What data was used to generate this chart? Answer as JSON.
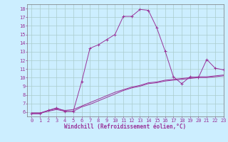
{
  "xlabel": "Windchill (Refroidissement éolien,°C)",
  "background_color": "#cceeff",
  "grid_color": "#aacccc",
  "line_color": "#993399",
  "x_hours": [
    0,
    1,
    2,
    3,
    4,
    5,
    6,
    7,
    8,
    9,
    10,
    11,
    12,
    13,
    14,
    15,
    16,
    17,
    18,
    19,
    20,
    21,
    22,
    23
  ],
  "series1": [
    5.8,
    5.8,
    6.2,
    6.5,
    6.1,
    6.1,
    9.5,
    13.4,
    13.8,
    14.4,
    15.0,
    17.1,
    17.1,
    17.9,
    17.8,
    15.8,
    13.1,
    10.1,
    9.3,
    10.1,
    10.0,
    12.1,
    11.1,
    10.9
  ],
  "series2": [
    5.9,
    5.9,
    6.2,
    6.4,
    6.2,
    6.3,
    6.7,
    7.1,
    7.5,
    7.9,
    8.3,
    8.6,
    8.9,
    9.1,
    9.4,
    9.5,
    9.7,
    9.8,
    9.9,
    10.0,
    10.1,
    10.1,
    10.2,
    10.3
  ],
  "series3": [
    5.9,
    5.9,
    6.1,
    6.3,
    6.1,
    6.1,
    6.6,
    6.9,
    7.3,
    7.7,
    8.1,
    8.5,
    8.8,
    9.0,
    9.3,
    9.4,
    9.6,
    9.7,
    9.8,
    9.9,
    10.0,
    10.0,
    10.1,
    10.2
  ],
  "ylim": [
    5.5,
    18.5
  ],
  "xlim": [
    -0.5,
    23
  ],
  "yticks": [
    6,
    7,
    8,
    9,
    10,
    11,
    12,
    13,
    14,
    15,
    16,
    17,
    18
  ],
  "xticks": [
    0,
    1,
    2,
    3,
    4,
    5,
    6,
    7,
    8,
    9,
    10,
    11,
    12,
    13,
    14,
    15,
    16,
    17,
    18,
    19,
    20,
    21,
    22,
    23
  ],
  "axis_fontsize": 5.5,
  "tick_fontsize": 5,
  "marker_size": 2.5,
  "line_width": 0.7
}
